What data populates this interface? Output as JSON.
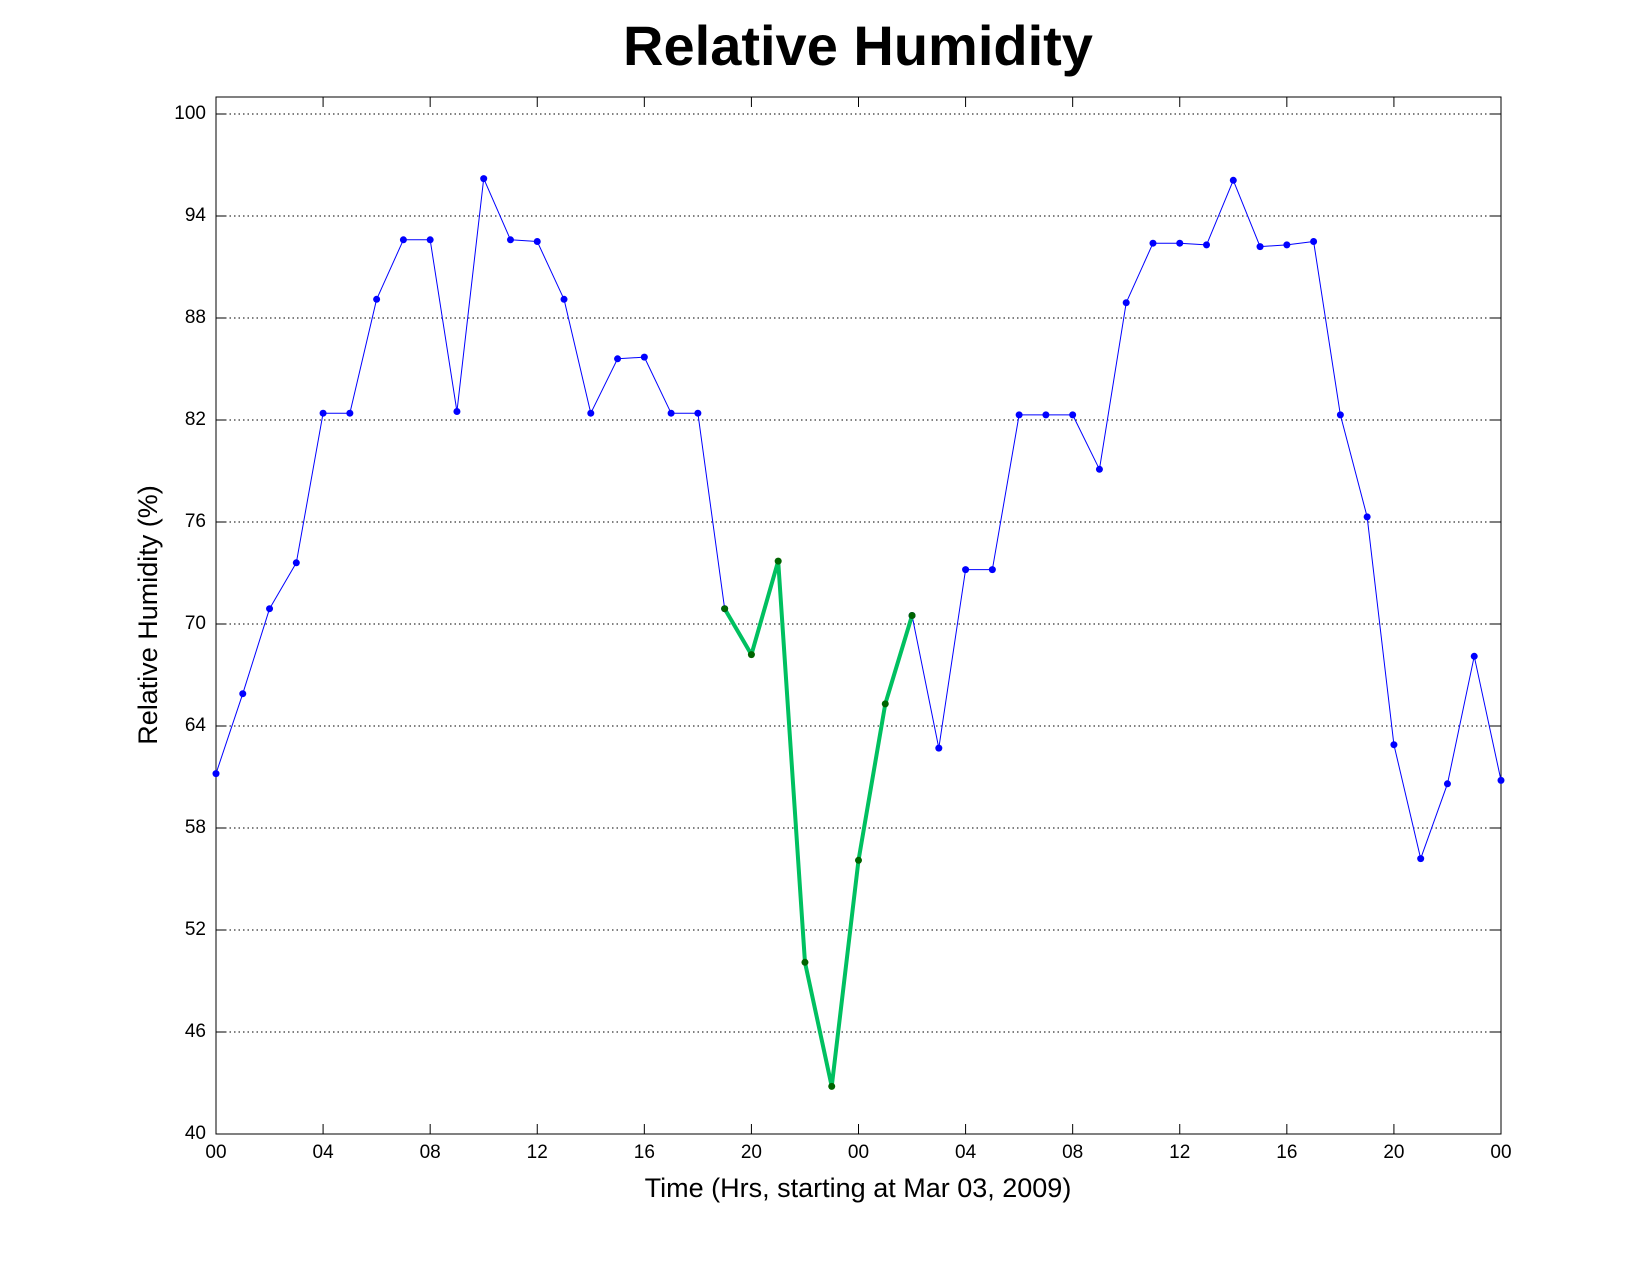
{
  "chart_data": {
    "type": "line",
    "title": "Relative Humidity",
    "xlabel": "Time (Hrs, starting at Mar 03, 2009)",
    "ylabel": "Relative Humidity (%)",
    "x": [
      0,
      1,
      2,
      3,
      4,
      5,
      6,
      7,
      8,
      9,
      10,
      11,
      12,
      13,
      14,
      15,
      16,
      17,
      18,
      19,
      20,
      21,
      22,
      23,
      24,
      25,
      26,
      27,
      28,
      29,
      30,
      31,
      32,
      33,
      34,
      35,
      36,
      37,
      38,
      39,
      40,
      41,
      42,
      43,
      44,
      45,
      46,
      47,
      48
    ],
    "series": [
      {
        "color": "#0000ff",
        "marker_color": "#0000ff",
        "line_width": 1,
        "values": [
          61.2,
          65.9,
          70.9,
          73.6,
          82.4,
          82.4,
          89.1,
          92.6,
          92.6,
          82.5,
          96.2,
          92.6,
          92.5,
          89.1,
          82.4,
          85.6,
          85.7,
          82.4,
          82.4,
          70.9,
          null,
          null,
          null,
          null,
          null,
          null,
          70.5,
          62.7,
          73.2,
          73.2,
          82.3,
          82.3,
          82.3,
          79.1,
          88.9,
          92.4,
          92.4,
          92.3,
          96.1,
          92.2,
          92.3,
          92.5,
          82.3,
          76.3,
          62.9,
          56.2,
          60.6,
          68.1,
          60.8
        ]
      },
      {
        "color": "#00c060",
        "marker_color": "#006400",
        "line_width": 4,
        "values": [
          null,
          null,
          null,
          null,
          null,
          null,
          null,
          null,
          null,
          null,
          null,
          null,
          null,
          null,
          null,
          null,
          null,
          null,
          null,
          70.9,
          68.2,
          73.7,
          50.1,
          42.8,
          56.1,
          65.3,
          70.5,
          null,
          null,
          null,
          null,
          null,
          null,
          null,
          null,
          null,
          null,
          null,
          null,
          null,
          null,
          null,
          null,
          null,
          null,
          null,
          null,
          null,
          null
        ]
      }
    ],
    "xlim": [
      0,
      48
    ],
    "xticks": [
      {
        "value": 0,
        "label": "00"
      },
      {
        "value": 4,
        "label": "04"
      },
      {
        "value": 8,
        "label": "08"
      },
      {
        "value": 12,
        "label": "12"
      },
      {
        "value": 16,
        "label": "16"
      },
      {
        "value": 20,
        "label": "20"
      },
      {
        "value": 24,
        "label": "00"
      },
      {
        "value": 28,
        "label": "04"
      },
      {
        "value": 32,
        "label": "08"
      },
      {
        "value": 36,
        "label": "12"
      },
      {
        "value": 40,
        "label": "16"
      },
      {
        "value": 44,
        "label": "20"
      },
      {
        "value": 48,
        "label": "00"
      }
    ],
    "ylim": [
      40,
      101
    ],
    "yticks": [
      40,
      46,
      52,
      58,
      64,
      70,
      76,
      82,
      88,
      94,
      100
    ],
    "ygrid": true
  }
}
